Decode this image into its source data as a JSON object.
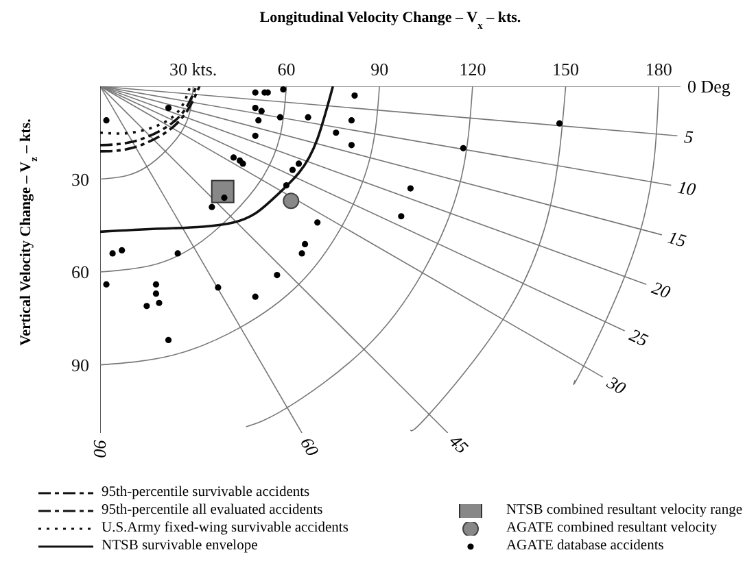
{
  "chart_data": {
    "type": "scatter",
    "xlabel": "Longitudinal Velocity Change – V$_{x}$ – kts.",
    "ylabel": "Vertical Velocity Change – V$_{z}$ – kts.",
    "xlim": [
      0,
      187
    ],
    "ylim": [
      112,
      0
    ],
    "xticks": [
      {
        "value": 30,
        "label": "30 kts."
      },
      60,
      90,
      120,
      150,
      180
    ],
    "yticks": [
      30,
      60,
      90
    ],
    "grid": false,
    "legend": "bottom",
    "series": [
      {
        "type": "line",
        "color": "#777777",
        "line_style": "solid",
        "x": [
          0,
          187
        ],
        "values": [
          0,
          0
        ]
      },
      {
        "type": "line",
        "color": "#777777",
        "line_style": "solid",
        "x": [
          0,
          186
        ],
        "values": [
          0,
          16
        ]
      },
      {
        "type": "line",
        "color": "#777777",
        "line_style": "solid",
        "x": [
          0,
          184
        ],
        "values": [
          0,
          32
        ]
      },
      {
        "type": "line",
        "color": "#777777",
        "line_style": "solid",
        "x": [
          0,
          181
        ],
        "values": [
          0,
          48
        ]
      },
      {
        "type": "line",
        "color": "#777777",
        "line_style": "solid",
        "x": [
          0,
          176
        ],
        "values": [
          0,
          64
        ]
      },
      {
        "type": "line",
        "color": "#777777",
        "line_style": "solid",
        "x": [
          0,
          169
        ],
        "values": [
          0,
          79
        ]
      },
      {
        "type": "line",
        "color": "#777777",
        "line_style": "solid",
        "x": [
          0,
          162
        ],
        "values": [
          0,
          94
        ]
      },
      {
        "type": "line",
        "color": "#777777",
        "line_style": "solid",
        "x": [
          0,
          112
        ],
        "values": [
          0,
          112
        ]
      },
      {
        "type": "line",
        "color": "#777777",
        "line_style": "solid",
        "x": [
          0,
          65
        ],
        "values": [
          0,
          112
        ]
      },
      {
        "type": "line",
        "color": "#333333",
        "line_style": "solid",
        "x": [
          0,
          0
        ],
        "values": [
          0,
          112
        ]
      },
      {
        "type": "line",
        "color": "#777777",
        "line_style": "solid",
        "x": [
          30,
          29,
          26,
          21,
          15,
          8,
          0
        ],
        "values": [
          0,
          8,
          15,
          21,
          26,
          29,
          30
        ]
      },
      {
        "type": "line",
        "color": "#777777",
        "line_style": "solid",
        "x": [
          60,
          58,
          52,
          42,
          30,
          16,
          0
        ],
        "values": [
          0,
          16,
          30,
          42,
          52,
          58,
          60
        ]
      },
      {
        "type": "line",
        "color": "#777777",
        "line_style": "solid",
        "x": [
          90,
          87,
          78,
          64,
          45,
          23,
          0
        ],
        "values": [
          0,
          23,
          45,
          64,
          78,
          87,
          90
        ]
      },
      {
        "type": "line",
        "color": "#777777",
        "line_style": "solid",
        "x": [
          120,
          116,
          104,
          85,
          60,
          47
        ],
        "values": [
          0,
          31,
          60,
          85,
          104,
          110
        ]
      },
      {
        "type": "line",
        "color": "#777777",
        "line_style": "solid",
        "x": [
          150,
          145,
          130,
          106,
          100
        ],
        "values": [
          0,
          39,
          75,
          106,
          111
        ]
      },
      {
        "type": "line",
        "color": "#777777",
        "line_style": "solid",
        "x": [
          180,
          174,
          156,
          153
        ],
        "values": [
          0,
          47,
          90,
          95
        ]
      },
      {
        "type": "line",
        "name": "95th-percentile survivable accidents",
        "color": "#111111",
        "line_style": "dashed",
        "x": [
          0,
          10,
          20,
          27,
          31
        ],
        "values": [
          19,
          18,
          14,
          8,
          0
        ]
      },
      {
        "type": "line",
        "name": "95th-percentile all evaluated accidents",
        "color": "#111111",
        "line_style": "dashed",
        "x": [
          0,
          10,
          21,
          28,
          32
        ],
        "values": [
          21,
          20,
          15,
          8,
          0
        ]
      },
      {
        "type": "line",
        "name": "U.S.Army fixed-wing survivable accidents",
        "color": "#111111",
        "line_style": "dotted",
        "x": [
          0,
          10,
          20,
          26,
          29
        ],
        "values": [
          15,
          15,
          12,
          7,
          0
        ]
      },
      {
        "type": "line",
        "name": "NTSB survivable envelope",
        "color": "#111111",
        "line_style": "solid",
        "x": [
          0,
          20,
          43,
          55,
          64,
          70,
          75
        ],
        "values": [
          47,
          46,
          44,
          37,
          28,
          17,
          0
        ]
      },
      {
        "name": "NTSB combined resultant velocity range",
        "color": "#888888",
        "marker": "square",
        "x": [
          39.5
        ],
        "values": [
          34
        ]
      },
      {
        "name": "AGATE combined resultant velocity",
        "color": "#888888",
        "marker": "circle",
        "x": [
          61.5
        ],
        "values": [
          37
        ]
      },
      {
        "name": "AGATE database accidents",
        "color": "#000000",
        "marker": "circle",
        "x": [
          2,
          22,
          50,
          53,
          54,
          59,
          50,
          52,
          51,
          58,
          67,
          50,
          82,
          81,
          76,
          81,
          43,
          45,
          46,
          64,
          62,
          60,
          40,
          36,
          70,
          100,
          97,
          66,
          65,
          57,
          4,
          7,
          25,
          2,
          18,
          148,
          117,
          18,
          19,
          15,
          38,
          50,
          22
        ],
        "values": [
          11,
          7,
          2,
          2,
          2,
          1,
          7,
          8,
          11,
          10,
          10,
          16,
          3,
          11,
          15,
          19,
          23,
          24,
          25,
          25,
          27,
          32,
          36,
          39,
          44,
          33,
          42,
          51,
          54,
          61,
          54,
          53,
          54,
          64,
          64,
          12,
          20,
          67,
          70,
          71,
          65,
          68,
          82
        ]
      }
    ],
    "annotations": [
      {
        "text": "0 Deg",
        "x": 187,
        "y": 0
      },
      {
        "text": "5",
        "x": 186,
        "y": 16
      },
      {
        "text": "10",
        "x": 184,
        "y": 32
      },
      {
        "text": "15",
        "x": 181,
        "y": 48
      },
      {
        "text": "20",
        "x": 176,
        "y": 64
      },
      {
        "text": "25",
        "x": 169,
        "y": 79
      },
      {
        "text": "30",
        "x": 162,
        "y": 94
      },
      {
        "text": "45",
        "x": 112,
        "y": 112
      },
      {
        "text": "60",
        "x": 65,
        "y": 112
      },
      {
        "text": "90",
        "x": 0,
        "y": 112
      }
    ]
  }
}
